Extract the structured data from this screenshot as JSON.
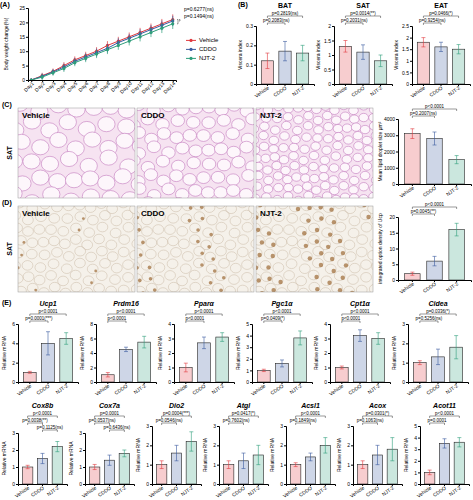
{
  "chart_data": [
    {
      "type": "line",
      "panel": "(A)",
      "y_label": "Body weight change(%)",
      "categories": [
        "Day1",
        "Day2",
        "Day3",
        "Day4",
        "Day5",
        "Day6",
        "Day7",
        "Day8",
        "Day9",
        "Day10",
        "Day11",
        "Day12",
        "Day13",
        "Day14"
      ],
      "series": [
        {
          "name": "Vehicle",
          "color": "#e0393e",
          "marker": "circle",
          "line_style": "solid",
          "values": [
            0,
            1.5,
            3,
            5,
            7,
            8.5,
            10,
            12,
            13.5,
            15,
            16.5,
            18,
            19.5,
            21
          ],
          "errors": [
            0.5,
            1,
            1,
            1.2,
            1.2,
            1.3,
            1.4,
            1.5,
            1.5,
            1.5,
            1.6,
            1.6,
            1.7,
            1.8
          ]
        },
        {
          "name": "CDDO",
          "color": "#3a5ba0",
          "marker": "circle",
          "line_style": "solid",
          "values": [
            0,
            1.3,
            2.8,
            4.5,
            6.5,
            8,
            9.5,
            11,
            13,
            14.5,
            16,
            17.5,
            19,
            20.5
          ],
          "errors": [
            0.5,
            1,
            1,
            1.2,
            1.2,
            1.3,
            1.4,
            1.5,
            1.5,
            1.5,
            1.6,
            1.6,
            1.7,
            1.8
          ]
        },
        {
          "name": "NJT-2",
          "color": "#2e9e7a",
          "marker": "circle",
          "line_style": "solid",
          "values": [
            0,
            1,
            2.5,
            4,
            6,
            7.5,
            9,
            10.5,
            12,
            13.5,
            15,
            16.5,
            18,
            19.5
          ],
          "errors": [
            0.5,
            1,
            1,
            1.2,
            1.2,
            1.3,
            1.4,
            1.5,
            1.5,
            1.5,
            1.6,
            1.6,
            1.7,
            1.8
          ]
        }
      ],
      "ylim": [
        0,
        25
      ],
      "yticks": [
        0,
        5,
        10,
        15,
        20,
        25
      ],
      "legend": "right",
      "annotations": [
        "p=0.6277(ns)",
        "p=0.1494(ns)"
      ]
    },
    {
      "type": "bar",
      "panel": "(B)",
      "title": "BAT",
      "y_label": "Viscera index",
      "categories": [
        "Vehicle",
        "CDDO",
        "NJT-2"
      ],
      "colors": [
        "#e0393e",
        "#3a5ba0",
        "#2e9e7a"
      ],
      "values": [
        0.12,
        0.17,
        0.16
      ],
      "errors": [
        0.04,
        0.05,
        0.04
      ],
      "ylim": [
        0,
        0.3
      ],
      "yticks": [
        0,
        0.1,
        0.2,
        0.3
      ],
      "annotations": [
        "p=0.2819(ns)",
        "p=0.2083(ns)"
      ]
    },
    {
      "type": "bar",
      "title": "SAT",
      "y_label": "Viscera index",
      "categories": [
        "Vehicle",
        "CDDO",
        "NJT-2"
      ],
      "colors": [
        "#e0393e",
        "#3a5ba0",
        "#2e9e7a"
      ],
      "values": [
        1.3,
        1.1,
        0.8
      ],
      "errors": [
        0.2,
        0.25,
        0.2
      ],
      "ylim": [
        0,
        2
      ],
      "yticks": [
        0,
        0.5,
        1,
        1.5,
        2
      ],
      "annotations": [
        "p=0.0014(**)",
        "p=0.2031(ns)"
      ]
    },
    {
      "type": "bar",
      "title": "EAT",
      "y_label": "Viscera index",
      "categories": [
        "Vehicle",
        "CDDO",
        "NJT-2"
      ],
      "colors": [
        "#e0393e",
        "#3a5ba0",
        "#2e9e7a"
      ],
      "values": [
        1.8,
        1.6,
        1.5
      ],
      "errors": [
        0.2,
        0.2,
        0.2
      ],
      "ylim": [
        0,
        2.5
      ],
      "yticks": [
        0,
        0.5,
        1,
        1.5,
        2,
        2.5
      ],
      "annotations": [
        "p=0.0466(*)",
        "p=0.9254(ns)"
      ]
    },
    {
      "type": "bar",
      "panel": "(C)",
      "tissue": "SAT",
      "image_titles": [
        "Vehicle",
        "CDDO",
        "NJT-2"
      ],
      "y_label": "Mean lipid droplet size μm²",
      "categories": [
        "Vehicle",
        "CDDO",
        "NJT-2"
      ],
      "colors": [
        "#e0393e",
        "#3a5ba0",
        "#2e9e7a"
      ],
      "values": [
        3100,
        2800,
        1500
      ],
      "errors": [
        300,
        400,
        250
      ],
      "ylim": [
        0,
        4000
      ],
      "yticks": [
        0,
        1000,
        2000,
        3000,
        4000
      ],
      "annotations": [
        "p<0.0001",
        "p=0.2007(ns)"
      ]
    },
    {
      "type": "bar",
      "panel": "(D)",
      "tissue": "SAT",
      "image_titles": [
        "Vehicle",
        "CDDO",
        "NJT-2"
      ],
      "y_label": "integrated option density of Ucp",
      "categories": [
        "Vehicle",
        "CDDO",
        "NJT-2"
      ],
      "colors": [
        "#e0393e",
        "#3a5ba0",
        "#2e9e7a"
      ],
      "values": [
        2,
        6,
        16
      ],
      "errors": [
        0.5,
        1.5,
        2
      ],
      "ylim": [
        0,
        20
      ],
      "yticks": [
        0,
        5,
        10,
        15,
        20
      ],
      "annotations": [
        "p<0.0001",
        "p=0.0045(**)"
      ]
    },
    {
      "type": "bar",
      "panel": "(E)",
      "title": "Ucp1",
      "y_label": "Relative mRNA",
      "categories": [
        "Vehicle",
        "CDDO",
        "NJT-2"
      ],
      "colors": [
        "#e0393e",
        "#3a5ba0",
        "#2e9e7a"
      ],
      "values": [
        1,
        4,
        4.5
      ],
      "errors": [
        0.1,
        1.2,
        0.6
      ],
      "ylim": [
        0,
        6
      ],
      "yticks": [
        0,
        2,
        4,
        6
      ],
      "annotations": [
        "p<0.0001",
        "p=0.0001(***)"
      ]
    },
    {
      "type": "bar",
      "title": "Prdm16",
      "y_label": "Relative mRNA",
      "categories": [
        "Vehicle",
        "CDDO",
        "NJT-2"
      ],
      "colors": [
        "#e0393e",
        "#3a5ba0",
        "#2e9e7a"
      ],
      "values": [
        1,
        4.5,
        5.5
      ],
      "errors": [
        0.3,
        0.3,
        0.8
      ],
      "ylim": [
        0,
        8
      ],
      "yticks": [
        0,
        2,
        4,
        6,
        8
      ],
      "annotations": [
        "p<0.0001",
        "p<0.0001"
      ]
    },
    {
      "type": "bar",
      "title": "Pparα",
      "y_label": "Relative mRNA",
      "categories": [
        "Vehicle",
        "CDDO",
        "NJT-2"
      ],
      "colors": [
        "#e0393e",
        "#3a5ba0",
        "#2e9e7a"
      ],
      "values": [
        1,
        2.7,
        3.1
      ],
      "errors": [
        0.3,
        0.4,
        0.3
      ],
      "ylim": [
        0,
        4
      ],
      "yticks": [
        0,
        1,
        2,
        3,
        4
      ],
      "annotations": [
        "p<0.0001",
        "p<0.0001"
      ]
    },
    {
      "type": "bar",
      "title": "Pgc1α",
      "y_label": "Relative mRNA",
      "categories": [
        "Vehicle",
        "CDDO",
        "NJT-2"
      ],
      "colors": [
        "#e0393e",
        "#3a5ba0",
        "#2e9e7a"
      ],
      "values": [
        1,
        1.6,
        3.8
      ],
      "errors": [
        0.1,
        0.3,
        0.6
      ],
      "ylim": [
        0,
        5
      ],
      "yticks": [
        0,
        1,
        2,
        3,
        4,
        5
      ],
      "annotations": [
        "p<0.0001",
        "p=0.0409(*)"
      ]
    },
    {
      "type": "bar",
      "title": "Cpt1α",
      "y_label": "Relative mRNA",
      "categories": [
        "Vehicle",
        "CDDO",
        "NJT-2"
      ],
      "colors": [
        "#e0393e",
        "#3a5ba0",
        "#2e9e7a"
      ],
      "values": [
        1,
        3.2,
        3
      ],
      "errors": [
        0.1,
        0.4,
        0.4
      ],
      "ylim": [
        0,
        4
      ],
      "yticks": [
        0,
        1,
        2,
        3,
        4
      ],
      "annotations": [
        "p<0.0001",
        "p<0.0001"
      ]
    },
    {
      "type": "bar",
      "title": "Cidea",
      "y_label": "Relative mRNA",
      "categories": [
        "Vehicle",
        "CDDO",
        "NJT-2"
      ],
      "colors": [
        "#e0393e",
        "#3a5ba0",
        "#2e9e7a"
      ],
      "values": [
        1,
        1.3,
        1.8
      ],
      "errors": [
        0.1,
        0.4,
        0.6
      ],
      "ylim": [
        0,
        3
      ],
      "yticks": [
        0,
        1,
        2,
        3
      ],
      "annotations": [
        "p=0.0336(*)",
        "p=0.5256(ns)"
      ]
    },
    {
      "type": "bar",
      "title": "Cox8b",
      "y_label": "Relative mRNA",
      "categories": [
        "Vehicle",
        "CDDO",
        "NJT-2"
      ],
      "colors": [
        "#e0393e",
        "#3a5ba0",
        "#2e9e7a"
      ],
      "values": [
        1,
        1.5,
        2.2
      ],
      "errors": [
        0.1,
        0.3,
        0.3
      ],
      "ylim": [
        0,
        3
      ],
      "yticks": [
        0,
        1,
        2,
        3
      ],
      "annotations": [
        "p<0.0001",
        "p=0.0038(**)",
        "p=0.1125(ns)"
      ]
    },
    {
      "type": "bar",
      "title": "Cox7a",
      "y_label": "Relative mRNA",
      "categories": [
        "Vehicle",
        "CDDO",
        "NJT-2"
      ],
      "colors": [
        "#e0393e",
        "#3a5ba0",
        "#2e9e7a"
      ],
      "values": [
        1,
        1.4,
        1.8
      ],
      "errors": [
        0.15,
        0.3,
        0.2
      ],
      "ylim": [
        0,
        3
      ],
      "yticks": [
        0,
        1,
        2,
        3
      ],
      "annotations": [
        "p=0.0001",
        "p=0.0537(ns)",
        "p=0.6436(ns)"
      ]
    },
    {
      "type": "bar",
      "title": "Dio2",
      "y_label": "Relative mRNA",
      "categories": [
        "Vehicle",
        "CDDO",
        "NJT-2"
      ],
      "colors": [
        "#e0393e",
        "#3a5ba0",
        "#2e9e7a"
      ],
      "values": [
        1,
        1.6,
        2.2
      ],
      "errors": [
        0.2,
        0.4,
        0.5
      ],
      "ylim": [
        0,
        3
      ],
      "yticks": [
        0,
        1,
        2,
        3
      ],
      "annotations": [
        "p=0.0004(***)",
        "p=0.0546(ns)"
      ]
    },
    {
      "type": "bar",
      "title": "Atgl",
      "y_label": "Relative mRNA",
      "categories": [
        "Vehicle",
        "CDDO",
        "NJT-2"
      ],
      "colors": [
        "#e0393e",
        "#3a5ba0",
        "#2e9e7a"
      ],
      "values": [
        1,
        1.2,
        1.5
      ],
      "errors": [
        0.2,
        0.4,
        0.5
      ],
      "ylim": [
        0,
        3
      ],
      "yticks": [
        0,
        1,
        2,
        3
      ],
      "annotations": [
        "p=0.0417(*)",
        "p=0.7602(ns)"
      ]
    },
    {
      "type": "bar",
      "title": "Acsl1",
      "y_label": "Relative mRNA",
      "categories": [
        "Vehicle",
        "CDDO",
        "NJT-2"
      ],
      "colors": [
        "#e0393e",
        "#3a5ba0",
        "#2e9e7a"
      ],
      "values": [
        1,
        1.4,
        2
      ],
      "errors": [
        0.1,
        0.2,
        0.4
      ],
      "ylim": [
        0,
        3
      ],
      "yticks": [
        0,
        1,
        2,
        3
      ],
      "annotations": [
        "p<0.0001",
        "p=0.1849(ns)"
      ]
    },
    {
      "type": "bar",
      "title": "Acox",
      "y_label": "Relative mRNA",
      "categories": [
        "Vehicle",
        "CDDO",
        "NJT-2"
      ],
      "colors": [
        "#e0393e",
        "#3a5ba0",
        "#2e9e7a"
      ],
      "values": [
        1,
        1.5,
        1.8
      ],
      "errors": [
        0.2,
        0.5,
        0.6
      ],
      "ylim": [
        0,
        3
      ],
      "yticks": [
        0,
        1,
        2,
        3
      ],
      "annotations": [
        "p=0.0301(*)",
        "p=0.1063(ns)"
      ]
    },
    {
      "type": "bar",
      "title": "Acot11",
      "y_label": "Relative mRNA",
      "categories": [
        "Vehicle",
        "CDDO",
        "NJT-2"
      ],
      "colors": [
        "#e0393e",
        "#3a5ba0",
        "#2e9e7a"
      ],
      "values": [
        1,
        3.5,
        3.6
      ],
      "errors": [
        0.2,
        0.4,
        0.4
      ],
      "ylim": [
        0,
        5
      ],
      "yticks": [
        0,
        1,
        2,
        3,
        4,
        5
      ],
      "annotations": [
        "p<0.0001",
        "p=0.0001"
      ]
    }
  ]
}
